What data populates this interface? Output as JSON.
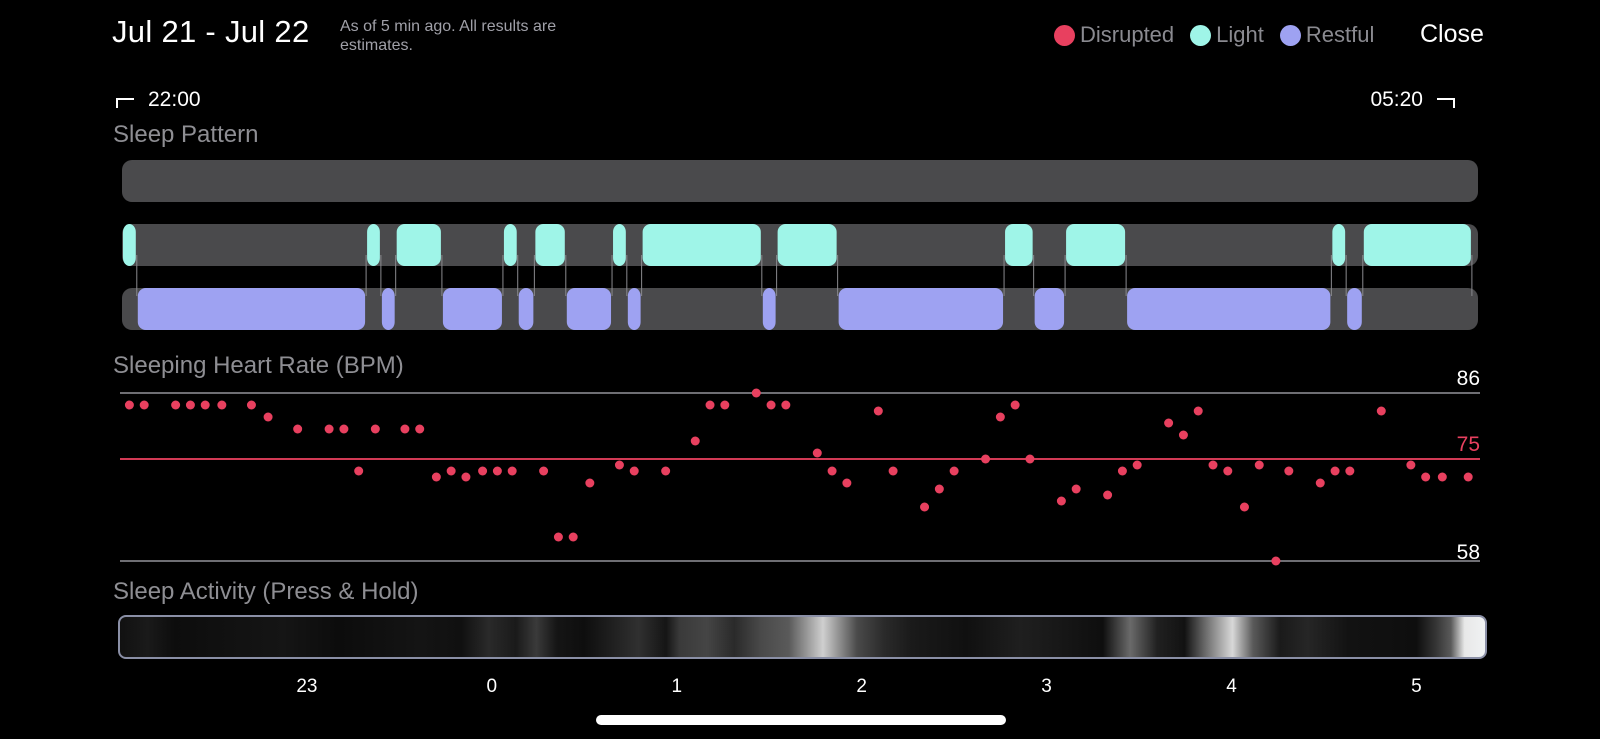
{
  "header": {
    "date_range": "Jul 21 - Jul 22",
    "note": "As of 5 min ago. All results are estimates."
  },
  "legend": [
    {
      "label": "Disrupted",
      "color": "#e8405f"
    },
    {
      "label": "Light",
      "color": "#9ff5e8"
    },
    {
      "label": "Restful",
      "color": "#9ea2f2"
    }
  ],
  "close_label": "Close",
  "time_range": {
    "start": "22:00",
    "end": "05:20"
  },
  "sections": {
    "sleep_pattern": "Sleep Pattern",
    "heart_rate": "Sleeping Heart Rate (BPM)",
    "activity": "Sleep Activity (Press & Hold)"
  },
  "sleep_pattern": {
    "disrupted": [],
    "light": [
      [
        0.0,
        0.08
      ],
      [
        1.32,
        1.4
      ],
      [
        1.48,
        1.73
      ],
      [
        2.06,
        2.14
      ],
      [
        2.23,
        2.4
      ],
      [
        2.65,
        2.73
      ],
      [
        2.81,
        3.46
      ],
      [
        3.54,
        3.87
      ],
      [
        4.77,
        4.93
      ],
      [
        5.1,
        5.43
      ],
      [
        6.54,
        6.62
      ],
      [
        6.71,
        7.3
      ]
    ],
    "restful": [
      [
        0.08,
        1.32
      ],
      [
        1.4,
        1.48
      ],
      [
        1.73,
        2.06
      ],
      [
        2.14,
        2.23
      ],
      [
        2.4,
        2.65
      ],
      [
        2.73,
        2.81
      ],
      [
        3.46,
        3.54
      ],
      [
        3.87,
        4.77
      ],
      [
        4.93,
        5.1
      ],
      [
        5.43,
        6.54
      ],
      [
        6.62,
        6.71
      ]
    ]
  },
  "heart_rate": {
    "max_label": "86",
    "avg_label": "75",
    "min_label": "58",
    "max": 86,
    "avg": 75,
    "min": 58,
    "points": [
      [
        0.04,
        84
      ],
      [
        0.12,
        84
      ],
      [
        0.29,
        84
      ],
      [
        0.37,
        84
      ],
      [
        0.45,
        84
      ],
      [
        0.54,
        84
      ],
      [
        0.7,
        84
      ],
      [
        0.79,
        82
      ],
      [
        0.95,
        80
      ],
      [
        1.12,
        80
      ],
      [
        1.2,
        80
      ],
      [
        1.28,
        73
      ],
      [
        1.37,
        80
      ],
      [
        1.53,
        80
      ],
      [
        1.61,
        80
      ],
      [
        1.7,
        72
      ],
      [
        1.78,
        73
      ],
      [
        1.86,
        72
      ],
      [
        1.95,
        73
      ],
      [
        2.03,
        73
      ],
      [
        2.11,
        73
      ],
      [
        2.28,
        73
      ],
      [
        2.36,
        62
      ],
      [
        2.44,
        62
      ],
      [
        2.53,
        71
      ],
      [
        2.69,
        74
      ],
      [
        2.77,
        73
      ],
      [
        2.94,
        73
      ],
      [
        3.1,
        78
      ],
      [
        3.18,
        84
      ],
      [
        3.26,
        84
      ],
      [
        3.43,
        86
      ],
      [
        3.51,
        84
      ],
      [
        3.59,
        84
      ],
      [
        3.76,
        76
      ],
      [
        3.84,
        73
      ],
      [
        3.92,
        71
      ],
      [
        4.09,
        83
      ],
      [
        4.17,
        73
      ],
      [
        4.34,
        67
      ],
      [
        4.42,
        70
      ],
      [
        4.5,
        73
      ],
      [
        4.67,
        75
      ],
      [
        4.75,
        82
      ],
      [
        4.83,
        84
      ],
      [
        4.91,
        75
      ],
      [
        5.08,
        68
      ],
      [
        5.16,
        70
      ],
      [
        5.33,
        69
      ],
      [
        5.41,
        73
      ],
      [
        5.49,
        74
      ],
      [
        5.66,
        81
      ],
      [
        5.74,
        79
      ],
      [
        5.82,
        83
      ],
      [
        5.9,
        74
      ],
      [
        5.98,
        73
      ],
      [
        6.07,
        67
      ],
      [
        6.15,
        74
      ],
      [
        6.24,
        58
      ],
      [
        6.31,
        73
      ],
      [
        6.48,
        71
      ],
      [
        6.56,
        73
      ],
      [
        6.64,
        73
      ],
      [
        6.81,
        83
      ],
      [
        6.97,
        74
      ],
      [
        7.05,
        72
      ],
      [
        7.14,
        72
      ],
      [
        7.28,
        72
      ]
    ]
  },
  "axis": {
    "ticks": [
      {
        "label": "23",
        "hour": 1
      },
      {
        "label": "0",
        "hour": 2
      },
      {
        "label": "1",
        "hour": 3
      },
      {
        "label": "2",
        "hour": 4
      },
      {
        "label": "3",
        "hour": 5
      },
      {
        "label": "4",
        "hour": 6
      },
      {
        "label": "5",
        "hour": 7
      }
    ]
  },
  "colors": {
    "track": "#4a4a4c",
    "light": "#9ff5e8",
    "restful": "#9ea2f2",
    "heart_dot": "#e8405f",
    "avg_line": "#d23a55",
    "ref_line": "#6e6e73"
  }
}
